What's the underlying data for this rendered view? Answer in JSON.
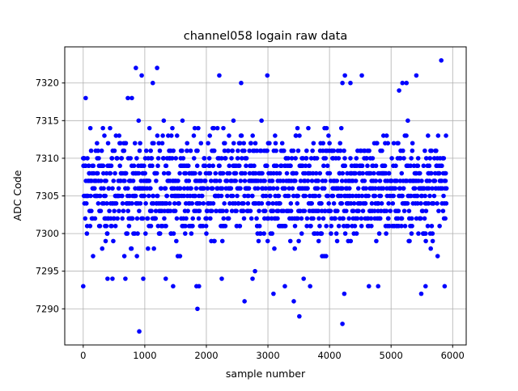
{
  "chart_data": {
    "type": "scatter",
    "title": "channel058 logain raw data",
    "xlabel": "sample number",
    "ylabel": "ADC Code",
    "xlim": [
      -300,
      6220
    ],
    "ylim": [
      7285.2,
      7324.8
    ],
    "xticks": [
      0,
      1000,
      2000,
      3000,
      4000,
      5000,
      6000
    ],
    "xtick_labels": [
      "0",
      "1000",
      "2000",
      "3000",
      "4000",
      "5000",
      "6000"
    ],
    "yticks": [
      7290,
      7295,
      7300,
      7305,
      7310,
      7315,
      7320
    ],
    "ytick_labels": [
      "7290",
      "7295",
      "7300",
      "7305",
      "7310",
      "7315",
      "7320"
    ],
    "grid": true,
    "marker_color": "#0000ff",
    "marker": "circle",
    "dense_band": {
      "x_range": [
        0,
        5900
      ],
      "y_range": [
        7297,
        7315
      ],
      "center": 7306
    },
    "outliers": [
      {
        "x": 40,
        "y": 7318
      },
      {
        "x": 725,
        "y": 7318
      },
      {
        "x": 790,
        "y": 7318
      },
      {
        "x": 855,
        "y": 7322
      },
      {
        "x": 950,
        "y": 7321
      },
      {
        "x": 1130,
        "y": 7320
      },
      {
        "x": 1200,
        "y": 7322
      },
      {
        "x": 2210,
        "y": 7321
      },
      {
        "x": 2565,
        "y": 7320
      },
      {
        "x": 2990,
        "y": 7321
      },
      {
        "x": 4210,
        "y": 7320
      },
      {
        "x": 4250,
        "y": 7321
      },
      {
        "x": 4340,
        "y": 7320
      },
      {
        "x": 4525,
        "y": 7321
      },
      {
        "x": 5130,
        "y": 7319
      },
      {
        "x": 5185,
        "y": 7320
      },
      {
        "x": 5250,
        "y": 7320
      },
      {
        "x": 5410,
        "y": 7321
      },
      {
        "x": 5815,
        "y": 7323
      },
      {
        "x": 0,
        "y": 7293
      },
      {
        "x": 395,
        "y": 7294
      },
      {
        "x": 475,
        "y": 7294
      },
      {
        "x": 685,
        "y": 7294
      },
      {
        "x": 910,
        "y": 7287
      },
      {
        "x": 975,
        "y": 7294
      },
      {
        "x": 1340,
        "y": 7294
      },
      {
        "x": 1460,
        "y": 7293
      },
      {
        "x": 1840,
        "y": 7293
      },
      {
        "x": 1855,
        "y": 7290
      },
      {
        "x": 1880,
        "y": 7293
      },
      {
        "x": 2250,
        "y": 7294
      },
      {
        "x": 2620,
        "y": 7291
      },
      {
        "x": 2750,
        "y": 7294
      },
      {
        "x": 2790,
        "y": 7295
      },
      {
        "x": 3090,
        "y": 7292
      },
      {
        "x": 3275,
        "y": 7293
      },
      {
        "x": 3420,
        "y": 7291
      },
      {
        "x": 3510,
        "y": 7289
      },
      {
        "x": 3580,
        "y": 7294
      },
      {
        "x": 3685,
        "y": 7293
      },
      {
        "x": 4210,
        "y": 7288
      },
      {
        "x": 4240,
        "y": 7292
      },
      {
        "x": 4640,
        "y": 7293
      },
      {
        "x": 4790,
        "y": 7293
      },
      {
        "x": 5490,
        "y": 7292
      },
      {
        "x": 5560,
        "y": 7293
      },
      {
        "x": 5870,
        "y": 7293
      }
    ]
  }
}
